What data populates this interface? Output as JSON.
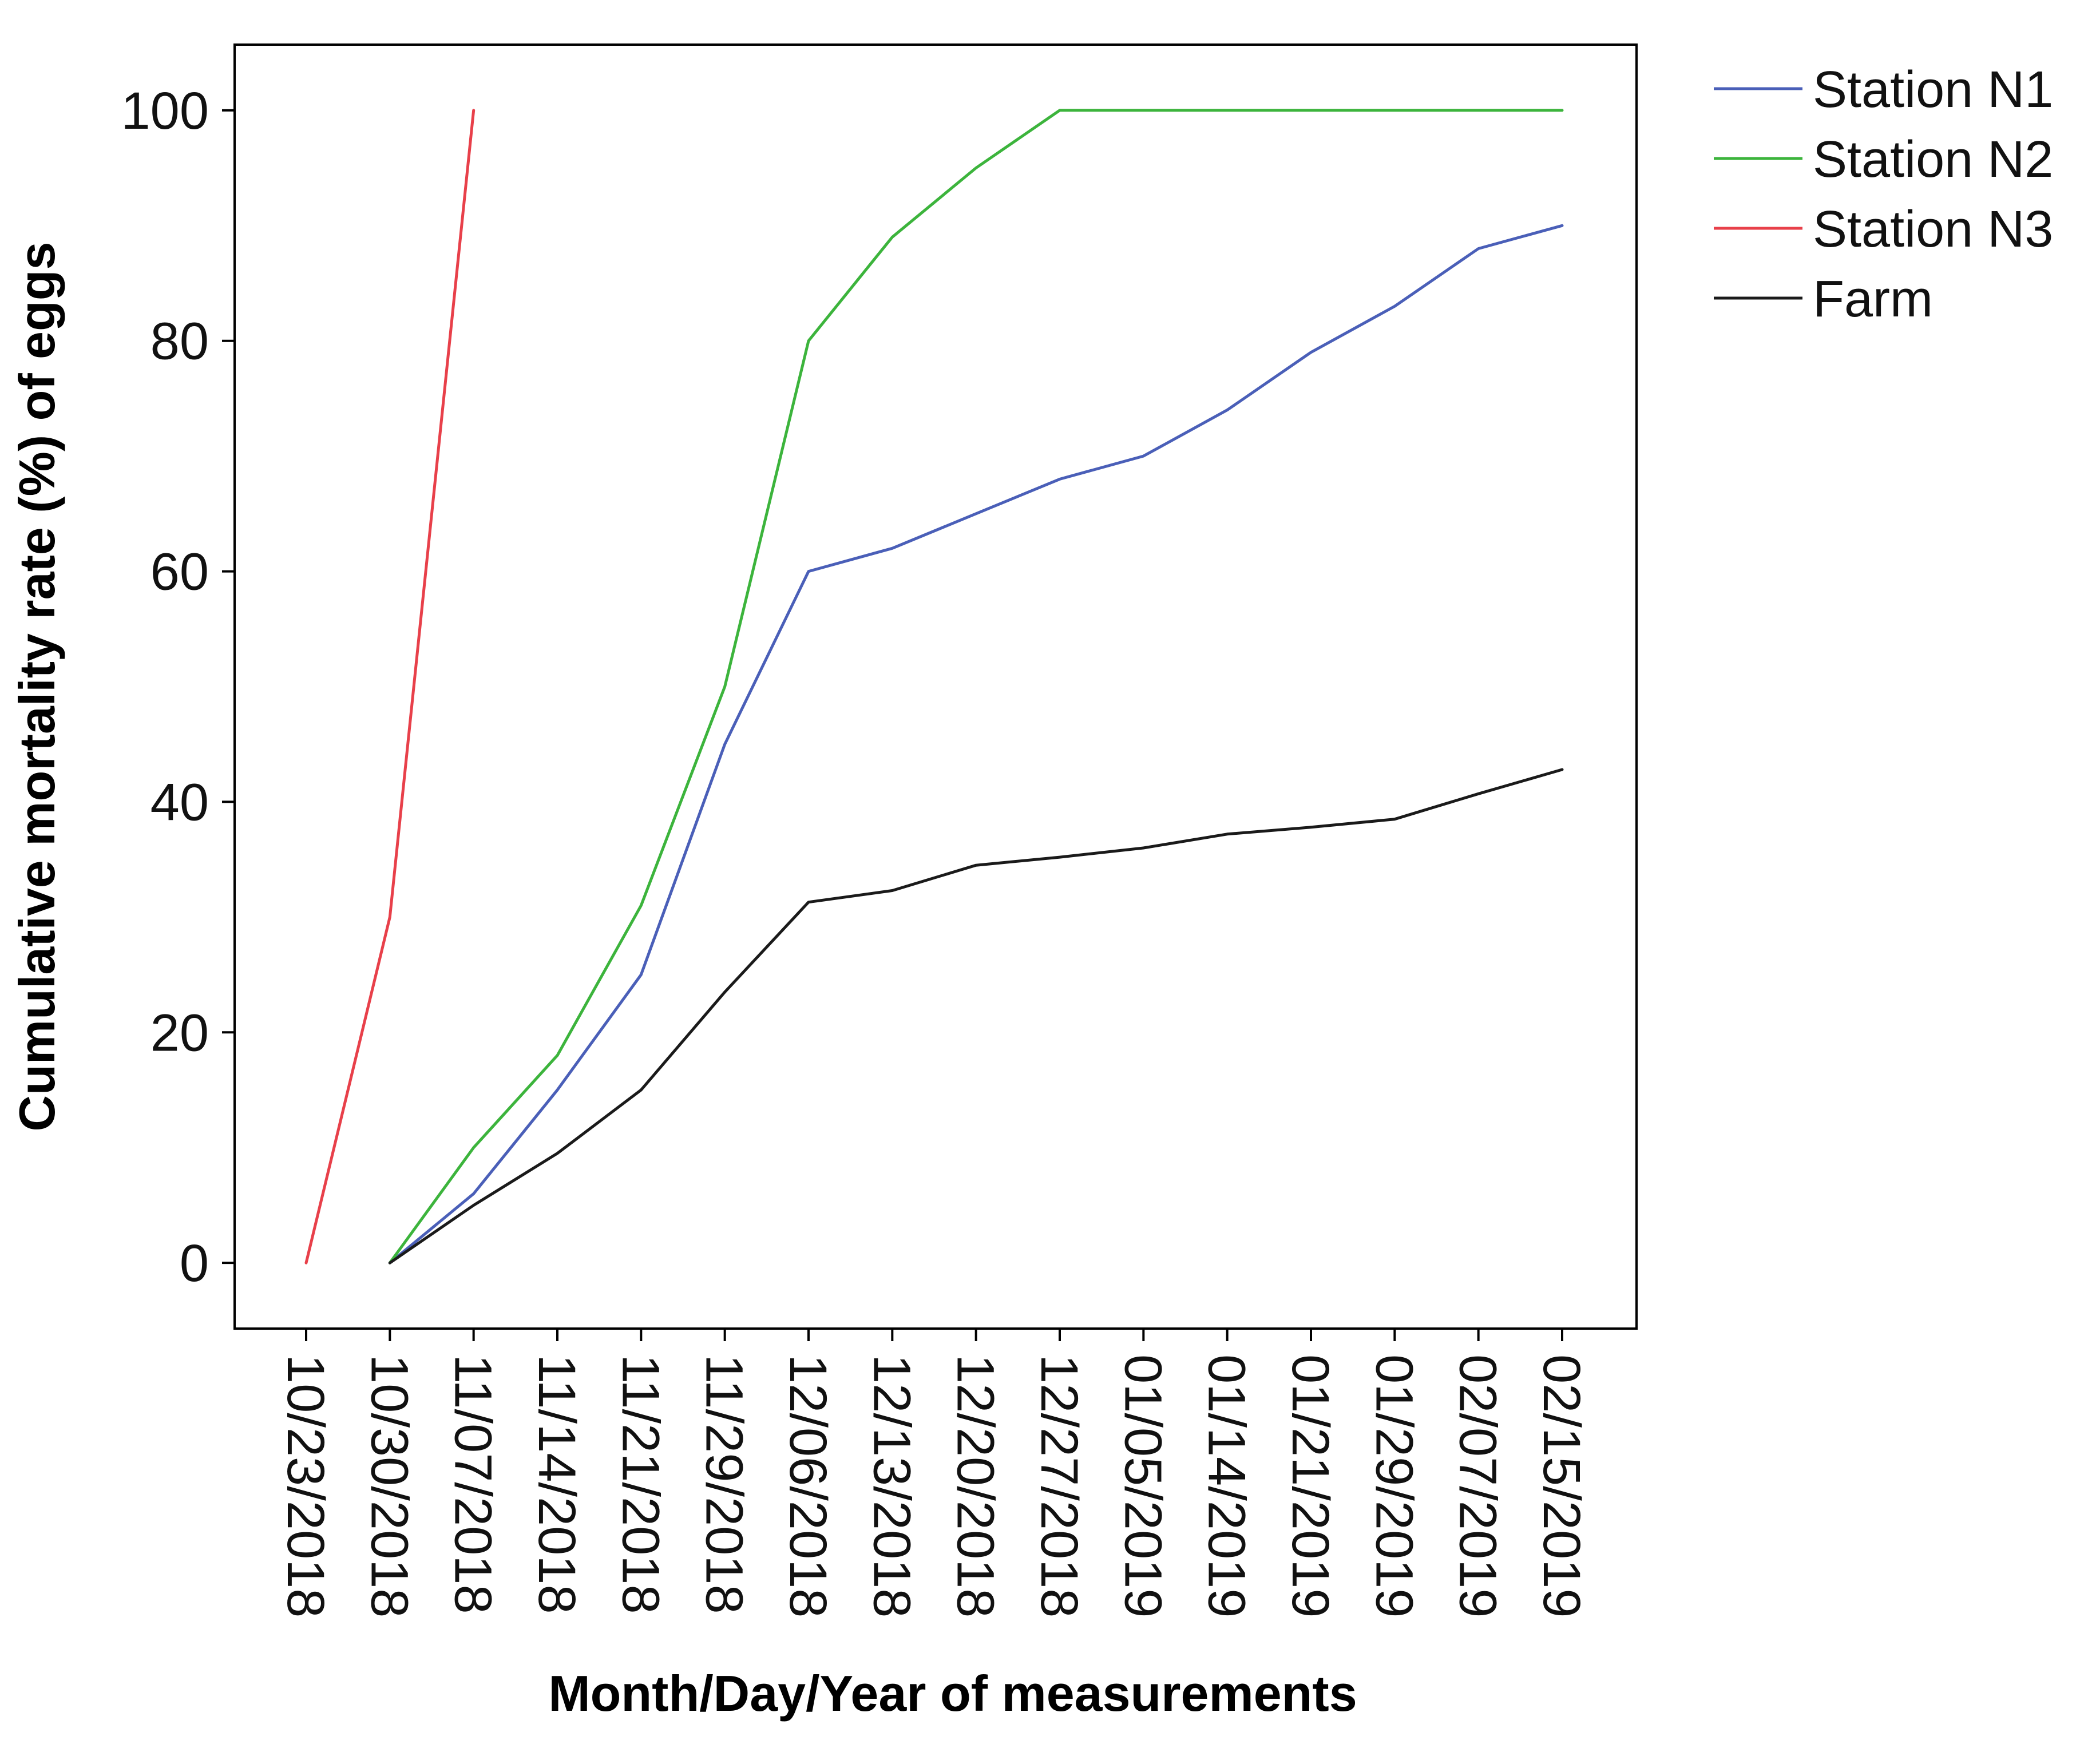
{
  "chart_data": {
    "type": "line",
    "title": "",
    "xlabel": "Month/Day/Year of measurements",
    "ylabel": "Cumulative mortality rate (%) of eggs",
    "ylim": [
      -5.7,
      105.7
    ],
    "yticks": [
      0,
      20,
      40,
      60,
      80,
      100
    ],
    "grid": false,
    "legend_position": "outside-top-right",
    "categories": [
      "10/23/2018",
      "10/30/2018",
      "11/07/2018",
      "11/14/2018",
      "11/21/2018",
      "11/29/2018",
      "12/06/2018",
      "12/13/2018",
      "12/20/2018",
      "12/27/2018",
      "01/05/2019",
      "01/14/2019",
      "01/21/2019",
      "01/29/2019",
      "02/07/2019",
      "02/15/2019"
    ],
    "series": [
      {
        "name": "Station N1",
        "color": "#4a5fb8",
        "values": [
          null,
          0,
          6,
          15,
          25,
          45,
          60,
          62,
          65,
          68,
          70,
          74,
          79,
          83,
          88,
          90
        ]
      },
      {
        "name": "Station N2",
        "color": "#3cb43c",
        "values": [
          null,
          0,
          10,
          18,
          31,
          50,
          80,
          89,
          95,
          100,
          100,
          100,
          100,
          100,
          100,
          100
        ]
      },
      {
        "name": "Station N3",
        "color": "#e8404a",
        "values": [
          0,
          30,
          100,
          null,
          null,
          null,
          null,
          null,
          null,
          null,
          null,
          null,
          null,
          null,
          null,
          null
        ]
      },
      {
        "name": "Farm",
        "color": "#1a1a1a",
        "values": [
          null,
          0,
          5,
          9.5,
          15,
          23.5,
          31.3,
          32.3,
          34.5,
          35.2,
          36,
          37.2,
          37.8,
          38.5,
          40.7,
          42.8
        ]
      }
    ]
  }
}
